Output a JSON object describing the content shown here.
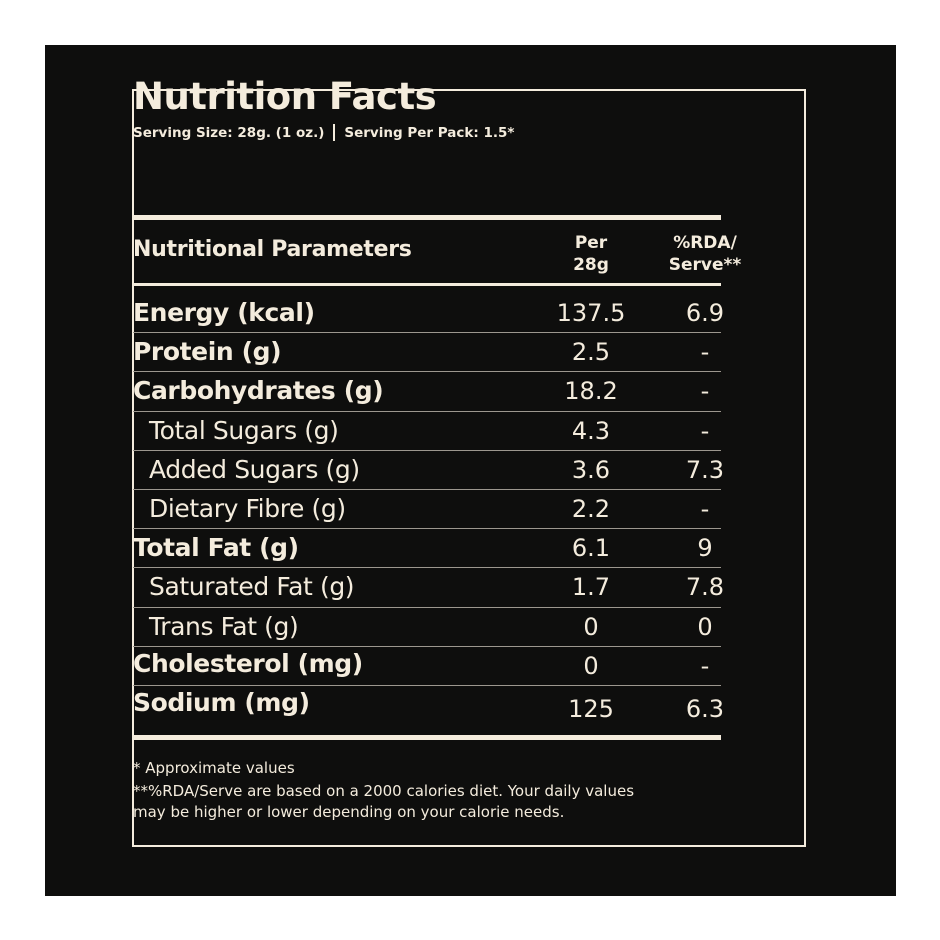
{
  "title": "Nutrition Facts",
  "serving_size": "Serving Size: 28g. (1 oz.)",
  "serving_per_pack": "Serving Per Pack: 1.5*",
  "headers": {
    "parameter": "Nutritional Parameters",
    "per_line1": "Per",
    "per_line2": "28g",
    "rda_line1": "%RDA/",
    "rda_line2": "Serve**"
  },
  "rows": [
    {
      "label": "Energy (kcal)",
      "per": "137.5",
      "rda": "6.9"
    },
    {
      "label": "Protein (g)",
      "per": "2.5",
      "rda": "-"
    },
    {
      "label": "Carbohydrates (g)",
      "per": "18.2",
      "rda": "-"
    },
    {
      "label": "Total Sugars (g)",
      "per": "4.3",
      "rda": "-"
    },
    {
      "label": "Added Sugars (g)",
      "per": "3.6",
      "rda": "7.3"
    },
    {
      "label": "Dietary Fibre (g)",
      "per": "2.2",
      "rda": "-"
    },
    {
      "label": "Total Fat (g)",
      "per": "6.1",
      "rda": "9"
    },
    {
      "label": "Saturated Fat (g)",
      "per": "1.7",
      "rda": "7.8"
    },
    {
      "label": "Trans Fat (g)",
      "per": "0",
      "rda": "0"
    },
    {
      "label": "Cholesterol (mg)",
      "per": "0",
      "rda": "-"
    },
    {
      "label": "Sodium (mg)",
      "per": "125",
      "rda": "6.3"
    }
  ],
  "footnotes": {
    "approx": "* Approximate values",
    "rda_line1": "**%RDA/Serve are based on a 2000 calories diet. Your daily values",
    "rda_line2": "may be higher or lower depending on your calorie needs."
  },
  "colors": {
    "background": "#0e0e0d",
    "text": "#f4ecdd"
  }
}
